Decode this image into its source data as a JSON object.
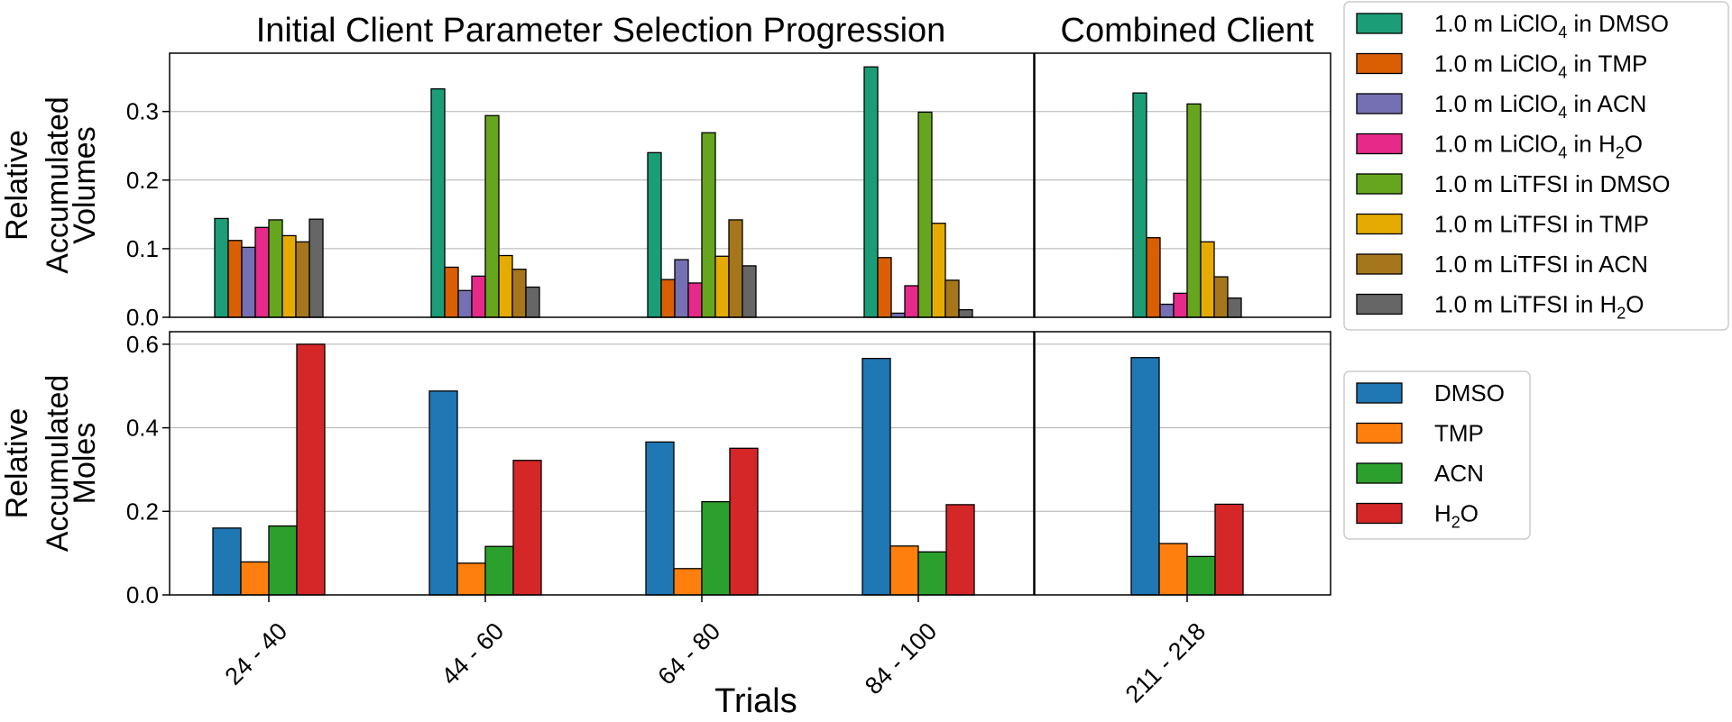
{
  "titles": {
    "left": "Initial Client Parameter Selection Progression",
    "right": "Combined Client"
  },
  "xlabel": "Trials",
  "chart_data": [
    {
      "type": "bar",
      "id": "volumes",
      "ylabel_lines": [
        "Relative",
        "Accumulated",
        "Volumes"
      ],
      "ylim": [
        0,
        0.385
      ],
      "yticks": [
        "0.0",
        "0.1",
        "0.2",
        "0.3"
      ],
      "ytick_values": [
        0,
        0.1,
        0.2,
        0.3
      ],
      "grid": true,
      "legend": "top-right, outside",
      "categories": [
        "24 - 40",
        "44 - 60",
        "64 - 80",
        "84 - 100",
        "211 - 218"
      ],
      "series": [
        {
          "name": "1.0 m LiClO4 in DMSO",
          "legend": {
            "pre": "1.0 m LiClO",
            "sub": "4",
            "post": " in DMSO"
          },
          "color": "#1b9e77",
          "values": [
            0.144,
            0.333,
            0.24,
            0.365,
            0.327
          ]
        },
        {
          "name": "1.0 m LiClO4 in TMP",
          "legend": {
            "pre": "1.0 m LiClO",
            "sub": "4",
            "post": " in TMP"
          },
          "color": "#d95f02",
          "values": [
            0.112,
            0.073,
            0.055,
            0.087,
            0.116
          ]
        },
        {
          "name": "1.0 m LiClO4 in ACN",
          "legend": {
            "pre": "1.0 m LiClO",
            "sub": "4",
            "post": " in ACN"
          },
          "color": "#7570b3",
          "values": [
            0.102,
            0.039,
            0.084,
            0.006,
            0.019
          ]
        },
        {
          "name": "1.0 m LiClO4 in H2O",
          "legend": {
            "pre": "1.0 m LiClO",
            "sub": "4",
            "post": " in H",
            "sub2": "2",
            "post2": "O"
          },
          "color": "#e7298a",
          "values": [
            0.131,
            0.06,
            0.05,
            0.046,
            0.035
          ]
        },
        {
          "name": "1.0 m LiTFSI in DMSO",
          "legend": {
            "pre": "1.0 m LiTFSI in DMSO"
          },
          "color": "#66a61e",
          "values": [
            0.142,
            0.294,
            0.269,
            0.299,
            0.311
          ]
        },
        {
          "name": "1.0 m LiTFSI in TMP",
          "legend": {
            "pre": "1.0 m LiTFSI in TMP"
          },
          "color": "#e6ab02",
          "values": [
            0.119,
            0.09,
            0.089,
            0.137,
            0.11
          ]
        },
        {
          "name": "1.0 m LiTFSI in ACN",
          "legend": {
            "pre": "1.0 m LiTFSI in ACN"
          },
          "color": "#a6761d",
          "values": [
            0.11,
            0.07,
            0.142,
            0.054,
            0.059
          ]
        },
        {
          "name": "1.0 m LiTFSI in H2O",
          "legend": {
            "pre": "1.0 m LiTFSI in H",
            "sub": "2",
            "post": "O"
          },
          "color": "#666666",
          "values": [
            0.143,
            0.044,
            0.075,
            0.011,
            0.028
          ]
        }
      ]
    },
    {
      "type": "bar",
      "id": "moles",
      "ylabel_lines": [
        "Relative",
        "Accumulated",
        "Moles"
      ],
      "ylim": [
        0,
        0.63
      ],
      "yticks": [
        "0.0",
        "0.2",
        "0.4",
        "0.6"
      ],
      "ytick_values": [
        0,
        0.2,
        0.4,
        0.6
      ],
      "grid": true,
      "legend": "right, outside",
      "categories": [
        "24 - 40",
        "44 - 60",
        "64 - 80",
        "84 - 100",
        "211 - 218"
      ],
      "series": [
        {
          "name": "DMSO",
          "legend": {
            "pre": "DMSO"
          },
          "color": "#1f77b4",
          "values": [
            0.16,
            0.488,
            0.366,
            0.566,
            0.568
          ]
        },
        {
          "name": "TMP",
          "legend": {
            "pre": "TMP"
          },
          "color": "#ff7f0e",
          "values": [
            0.079,
            0.076,
            0.063,
            0.117,
            0.123
          ]
        },
        {
          "name": "ACN",
          "legend": {
            "pre": "ACN"
          },
          "color": "#2ca02c",
          "values": [
            0.165,
            0.116,
            0.223,
            0.103,
            0.092
          ]
        },
        {
          "name": "H2O",
          "legend": {
            "pre": "H",
            "sub": "2",
            "post": "O"
          },
          "color": "#d62728",
          "values": [
            0.6,
            0.322,
            0.351,
            0.216,
            0.217
          ]
        }
      ]
    }
  ]
}
